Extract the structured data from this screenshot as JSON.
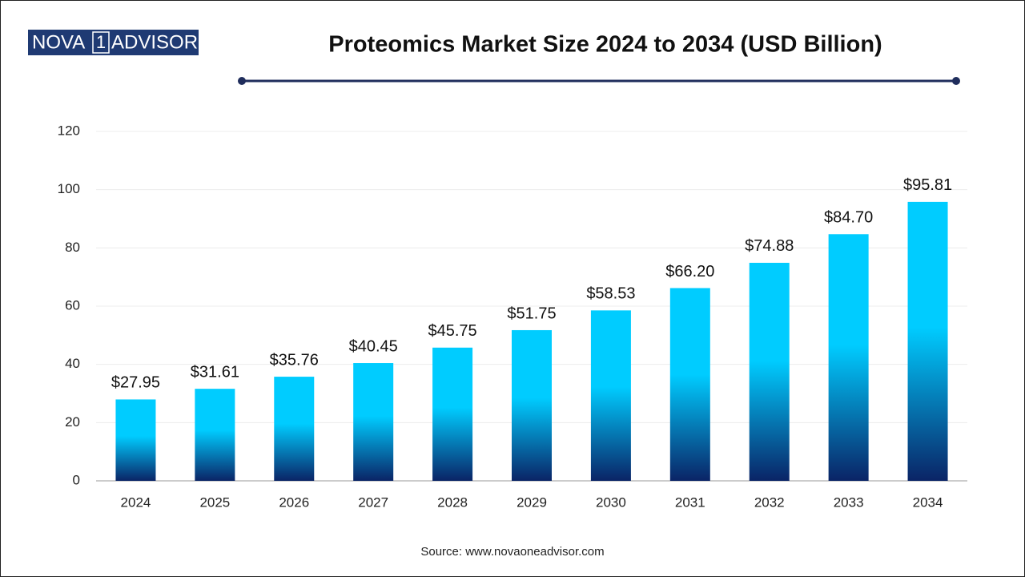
{
  "chart_data": {
    "type": "bar",
    "logo": [
      "NOVA",
      "1",
      "ADVISOR"
    ],
    "title": "Proteomics Market Size 2024 to 2034 (USD Billion)",
    "categories": [
      "2024",
      "2025",
      "2026",
      "2027",
      "2028",
      "2029",
      "2030",
      "2031",
      "2032",
      "2033",
      "2034"
    ],
    "values": [
      27.95,
      31.61,
      35.76,
      40.45,
      45.75,
      51.75,
      58.53,
      66.2,
      74.88,
      84.7,
      95.81
    ],
    "value_labels": [
      "$27.95",
      "$31.61",
      "$35.76",
      "$40.45",
      "$45.75",
      "$51.75",
      "$58.53",
      "$66.20",
      "$74.88",
      "$84.70",
      "$95.81"
    ],
    "gradient": [
      "#00ccff",
      "#0a2466"
    ],
    "ylim": [
      0,
      120
    ],
    "yticks": [
      0,
      20,
      40,
      60,
      80,
      100,
      120
    ],
    "grid": true,
    "source": "Source: www.novaoneadvisor.com"
  }
}
